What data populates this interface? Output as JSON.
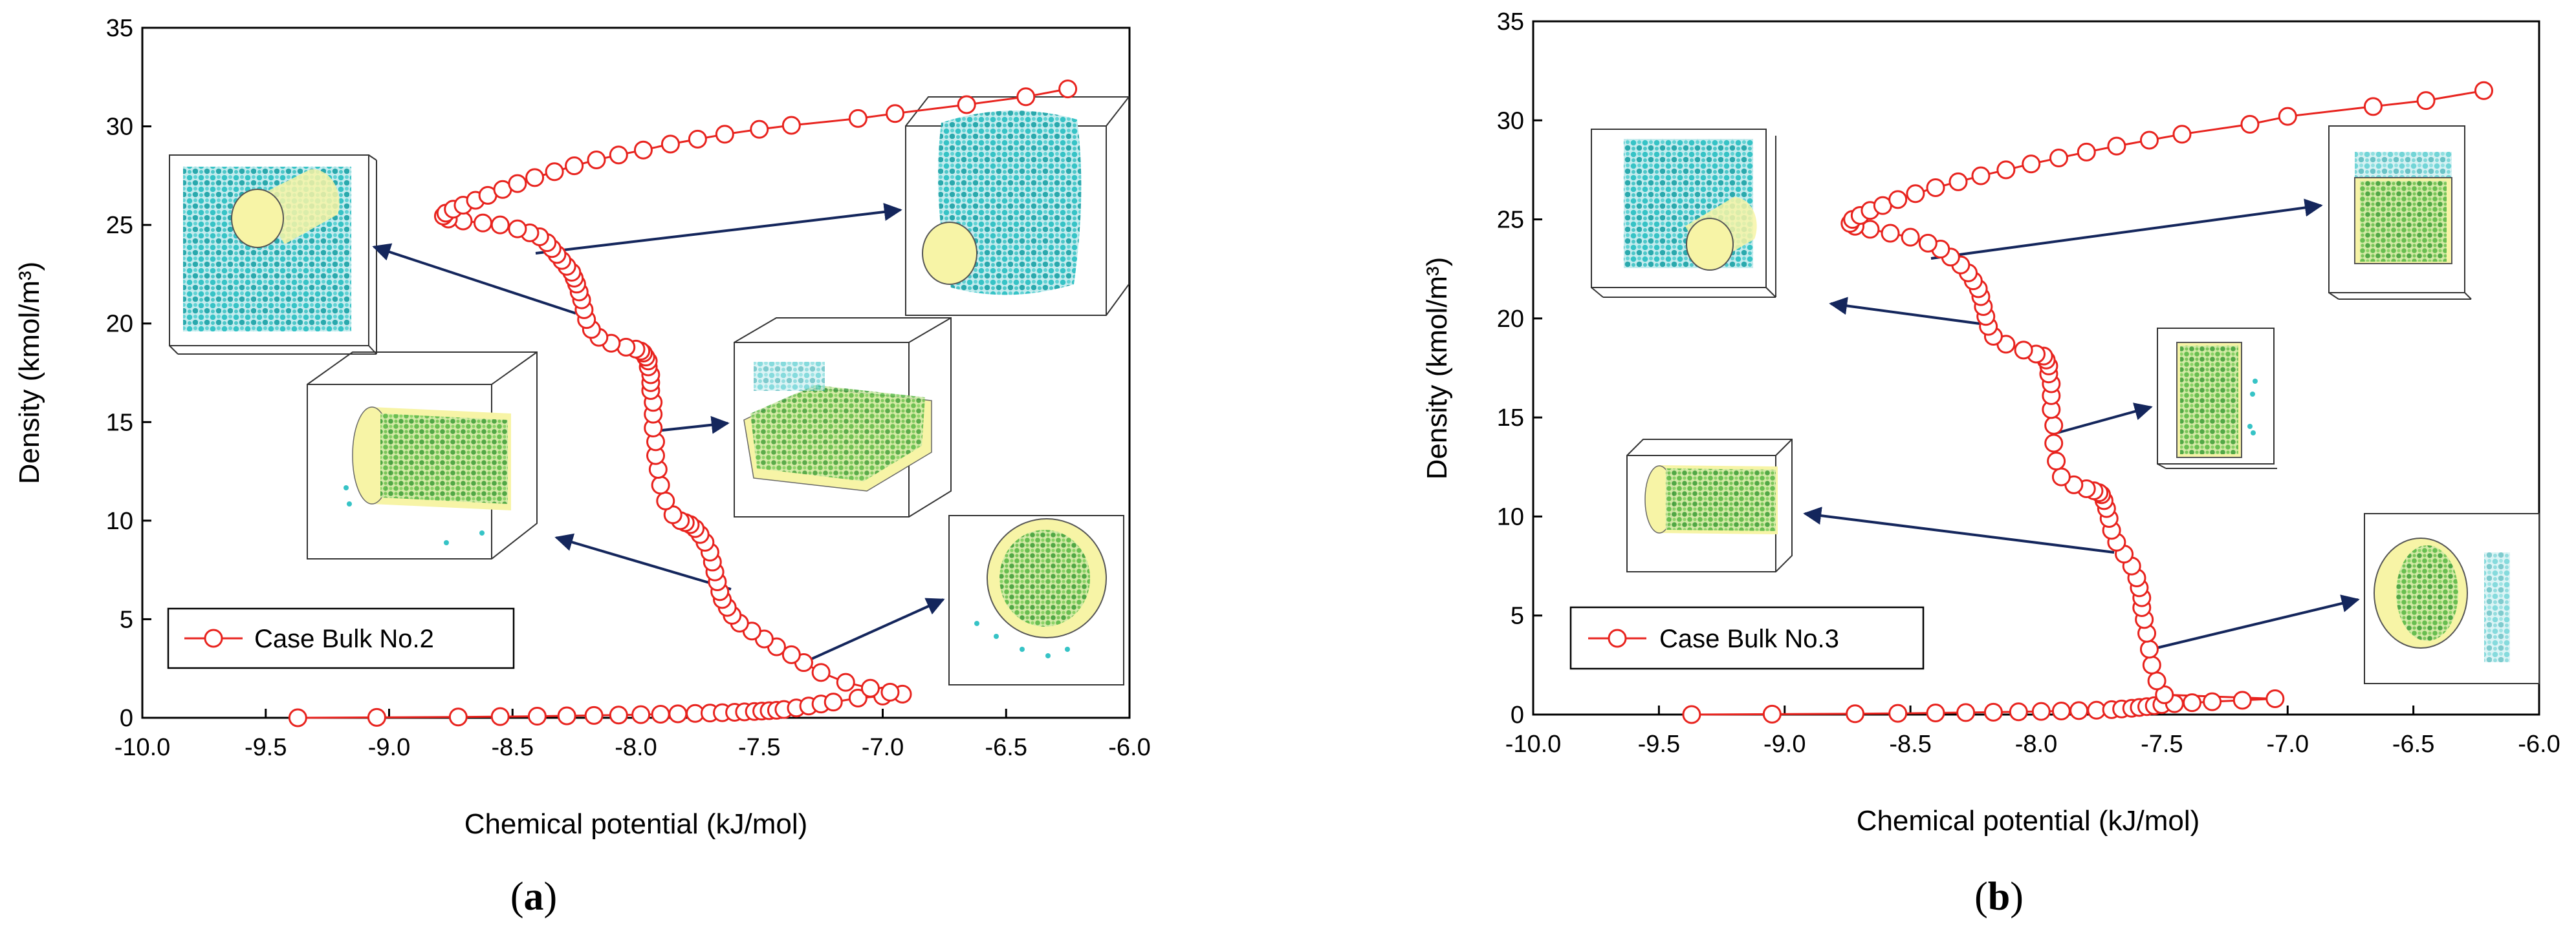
{
  "colors": {
    "series": "#e8231e",
    "arrow": "#14265c",
    "particle_cyan": "#36c3c6",
    "particle_green": "#58b846",
    "pore_fill": "#f7f4a6",
    "axis": "#000000"
  },
  "chart_data": [
    {
      "type": "scatter",
      "panel": "a",
      "panel_label": {
        "open": "(",
        "letter": "a",
        "close": ")"
      },
      "xlabel": "Chemical potential (kJ/mol)",
      "ylabel": "Density (kmol/m³)",
      "xlim": [
        -10.0,
        -6.0
      ],
      "ylim": [
        0,
        35
      ],
      "xticks": [
        "-10.0",
        "-9.5",
        "-9.0",
        "-8.5",
        "-8.0",
        "-7.5",
        "-7.0",
        "-6.5",
        "-6.0"
      ],
      "yticks": [
        "0",
        "5",
        "10",
        "15",
        "20",
        "25",
        "30",
        "35"
      ],
      "legend": {
        "label": "Case Bulk No.2",
        "position": "lower-left"
      },
      "series": [
        {
          "name": "Case Bulk No.2",
          "x": [
            -9.37,
            -9.05,
            -8.72,
            -8.55,
            -8.4,
            -8.28,
            -8.17,
            -8.07,
            -7.98,
            -7.9,
            -7.83,
            -7.76,
            -7.7,
            -7.65,
            -7.6,
            -7.56,
            -7.52,
            -7.49,
            -7.46,
            -7.43,
            -7.4,
            -7.35,
            -7.3,
            -7.25,
            -7.2,
            -7.1,
            -7.0,
            -6.92,
            -6.97,
            -7.05,
            -7.15,
            -7.25,
            -7.32,
            -7.37,
            -7.43,
            -7.48,
            -7.53,
            -7.58,
            -7.61,
            -7.63,
            -7.65,
            -7.66,
            -7.67,
            -7.68,
            -7.69,
            -7.7,
            -7.72,
            -7.74,
            -7.76,
            -7.78,
            -7.8,
            -7.82,
            -7.85,
            -7.88,
            -7.9,
            -7.91,
            -7.92,
            -7.92,
            -7.93,
            -7.93,
            -7.93,
            -7.94,
            -7.94,
            -7.94,
            -7.95,
            -7.95,
            -7.96,
            -7.97,
            -7.98,
            -8.0,
            -8.04,
            -8.1,
            -8.15,
            -8.18,
            -8.2,
            -8.21,
            -8.22,
            -8.23,
            -8.24,
            -8.25,
            -8.26,
            -8.28,
            -8.3,
            -8.32,
            -8.34,
            -8.36,
            -8.39,
            -8.43,
            -8.48,
            -8.55,
            -8.62,
            -8.7,
            -8.76,
            -8.78,
            -8.77,
            -8.74,
            -8.7,
            -8.65,
            -8.6,
            -8.54,
            -8.48,
            -8.41,
            -8.33,
            -8.25,
            -8.16,
            -8.07,
            -7.97,
            -7.86,
            -7.75,
            -7.64,
            -7.5,
            -7.37,
            -7.1,
            -6.95,
            -6.66,
            -6.42,
            -6.25
          ],
          "y": [
            0.0,
            0.02,
            0.04,
            0.06,
            0.08,
            0.1,
            0.12,
            0.14,
            0.16,
            0.18,
            0.2,
            0.22,
            0.24,
            0.26,
            0.28,
            0.3,
            0.32,
            0.34,
            0.36,
            0.38,
            0.42,
            0.5,
            0.6,
            0.7,
            0.8,
            1.0,
            1.1,
            1.2,
            1.3,
            1.5,
            1.8,
            2.3,
            2.8,
            3.2,
            3.6,
            4.0,
            4.4,
            4.8,
            5.2,
            5.6,
            6.0,
            6.4,
            6.9,
            7.4,
            7.9,
            8.4,
            8.9,
            9.3,
            9.6,
            9.8,
            9.9,
            10.0,
            10.3,
            11.0,
            11.8,
            12.6,
            13.3,
            14.0,
            14.7,
            15.4,
            16.0,
            16.6,
            17.0,
            17.4,
            17.8,
            18.1,
            18.3,
            18.5,
            18.6,
            18.7,
            18.8,
            19.0,
            19.3,
            19.7,
            20.2,
            20.7,
            21.2,
            21.6,
            22.0,
            22.3,
            22.6,
            22.9,
            23.2,
            23.5,
            23.8,
            24.1,
            24.4,
            24.6,
            24.8,
            25.0,
            25.1,
            25.2,
            25.3,
            25.45,
            25.6,
            25.8,
            26.0,
            26.25,
            26.5,
            26.8,
            27.1,
            27.4,
            27.7,
            28.0,
            28.3,
            28.55,
            28.8,
            29.1,
            29.35,
            29.6,
            29.85,
            30.05,
            30.4,
            30.65,
            31.1,
            31.5,
            31.9
          ]
        }
      ],
      "insets": [
        {
          "label": "cylindrical-pore-upper-left"
        },
        {
          "label": "cylindrical-pore-upper-right"
        },
        {
          "label": "slit-pore-middle"
        },
        {
          "label": "cylindrical-pore-middle-left"
        },
        {
          "label": "cross-section-lower-right"
        }
      ]
    },
    {
      "type": "scatter",
      "panel": "b",
      "panel_label": {
        "open": "(",
        "letter": "b",
        "close": ")"
      },
      "xlabel": "Chemical potential (kJ/mol)",
      "ylabel": "Density (kmol/m³)",
      "xlim": [
        -10.0,
        -6.0
      ],
      "ylim": [
        0,
        35
      ],
      "xticks": [
        "-10.0",
        "-9.5",
        "-9.0",
        "-8.5",
        "-8.0",
        "-7.5",
        "-7.0",
        "-6.5",
        "-6.0"
      ],
      "yticks": [
        "0",
        "5",
        "10",
        "15",
        "20",
        "25",
        "30",
        "35"
      ],
      "legend": {
        "label": "Case Bulk No.3",
        "position": "lower-left"
      },
      "series": [
        {
          "name": "Case Bulk No.3",
          "x": [
            -9.37,
            -9.05,
            -8.72,
            -8.55,
            -8.4,
            -8.28,
            -8.17,
            -8.07,
            -7.98,
            -7.9,
            -7.83,
            -7.76,
            -7.7,
            -7.66,
            -7.62,
            -7.59,
            -7.56,
            -7.53,
            -7.5,
            -7.45,
            -7.38,
            -7.3,
            -7.18,
            -7.05,
            -7.49,
            -7.52,
            -7.54,
            -7.55,
            -7.56,
            -7.57,
            -7.58,
            -7.58,
            -7.59,
            -7.6,
            -7.62,
            -7.65,
            -7.68,
            -7.7,
            -7.71,
            -7.72,
            -7.73,
            -7.74,
            -7.75,
            -7.77,
            -7.8,
            -7.85,
            -7.9,
            -7.92,
            -7.93,
            -7.93,
            -7.94,
            -7.94,
            -7.94,
            -7.95,
            -7.95,
            -7.96,
            -7.97,
            -8.0,
            -8.05,
            -8.12,
            -8.17,
            -8.19,
            -8.2,
            -8.21,
            -8.22,
            -8.23,
            -8.25,
            -8.27,
            -8.3,
            -8.34,
            -8.38,
            -8.43,
            -8.5,
            -8.58,
            -8.66,
            -8.72,
            -8.74,
            -8.73,
            -8.7,
            -8.66,
            -8.61,
            -8.55,
            -8.48,
            -8.4,
            -8.31,
            -8.22,
            -8.12,
            -8.02,
            -7.91,
            -7.8,
            -7.68,
            -7.55,
            -7.42,
            -7.15,
            -7.0,
            -6.66,
            -6.45,
            -6.22
          ],
          "y": [
            0.0,
            0.02,
            0.04,
            0.06,
            0.08,
            0.1,
            0.12,
            0.14,
            0.16,
            0.18,
            0.2,
            0.22,
            0.25,
            0.28,
            0.32,
            0.36,
            0.4,
            0.45,
            0.5,
            0.55,
            0.6,
            0.65,
            0.72,
            0.8,
            1.0,
            1.7,
            2.5,
            3.3,
            4.1,
            4.8,
            5.4,
            5.9,
            6.4,
            6.9,
            7.5,
            8.1,
            8.7,
            9.3,
            9.9,
            10.4,
            10.8,
            11.1,
            11.2,
            11.3,
            11.4,
            11.6,
            12.0,
            12.8,
            13.7,
            14.6,
            15.4,
            16.1,
            16.7,
            17.2,
            17.6,
            17.9,
            18.1,
            18.2,
            18.4,
            18.7,
            19.1,
            19.6,
            20.1,
            20.6,
            21.1,
            21.5,
            21.9,
            22.3,
            22.7,
            23.1,
            23.5,
            23.8,
            24.1,
            24.3,
            24.5,
            24.65,
            24.8,
            25.0,
            25.2,
            25.45,
            25.7,
            26.0,
            26.3,
            26.6,
            26.9,
            27.2,
            27.5,
            27.8,
            28.1,
            28.4,
            28.7,
            29.0,
            29.3,
            29.8,
            30.2,
            30.7,
            31.0,
            31.5
          ]
        }
      ],
      "insets": [
        {
          "label": "cylindrical-pore-upper-left"
        },
        {
          "label": "slit-pore-upper-right"
        },
        {
          "label": "slit-pore-middle"
        },
        {
          "label": "cylindrical-pore-middle-left"
        },
        {
          "label": "cross-section-lower-right"
        }
      ]
    }
  ]
}
